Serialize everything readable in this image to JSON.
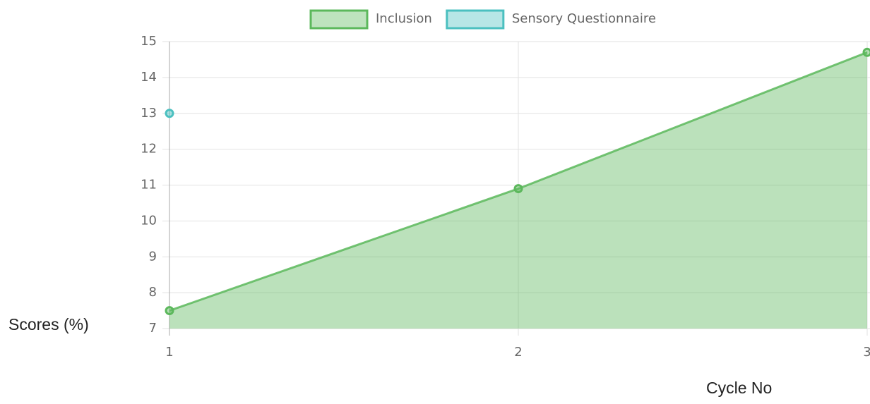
{
  "chart_data": {
    "type": "line",
    "x": [
      1,
      2,
      3
    ],
    "xlim": [
      1,
      3
    ],
    "xticks": [
      1,
      2,
      3
    ],
    "ylim": [
      7,
      15
    ],
    "yticks": [
      7,
      8,
      9,
      10,
      11,
      12,
      13,
      14,
      15
    ],
    "y_label": "Scores (%)",
    "x_label": "Cycle No",
    "grid": true,
    "legend": "top",
    "series": [
      {
        "name": "Inclusion",
        "color": "#5cb85c",
        "values": [
          7.5,
          10.9,
          14.7
        ]
      },
      {
        "name": "Sensory Questionnaire",
        "color": "#4bc0c0",
        "values": [
          13,
          null,
          null
        ]
      }
    ]
  }
}
